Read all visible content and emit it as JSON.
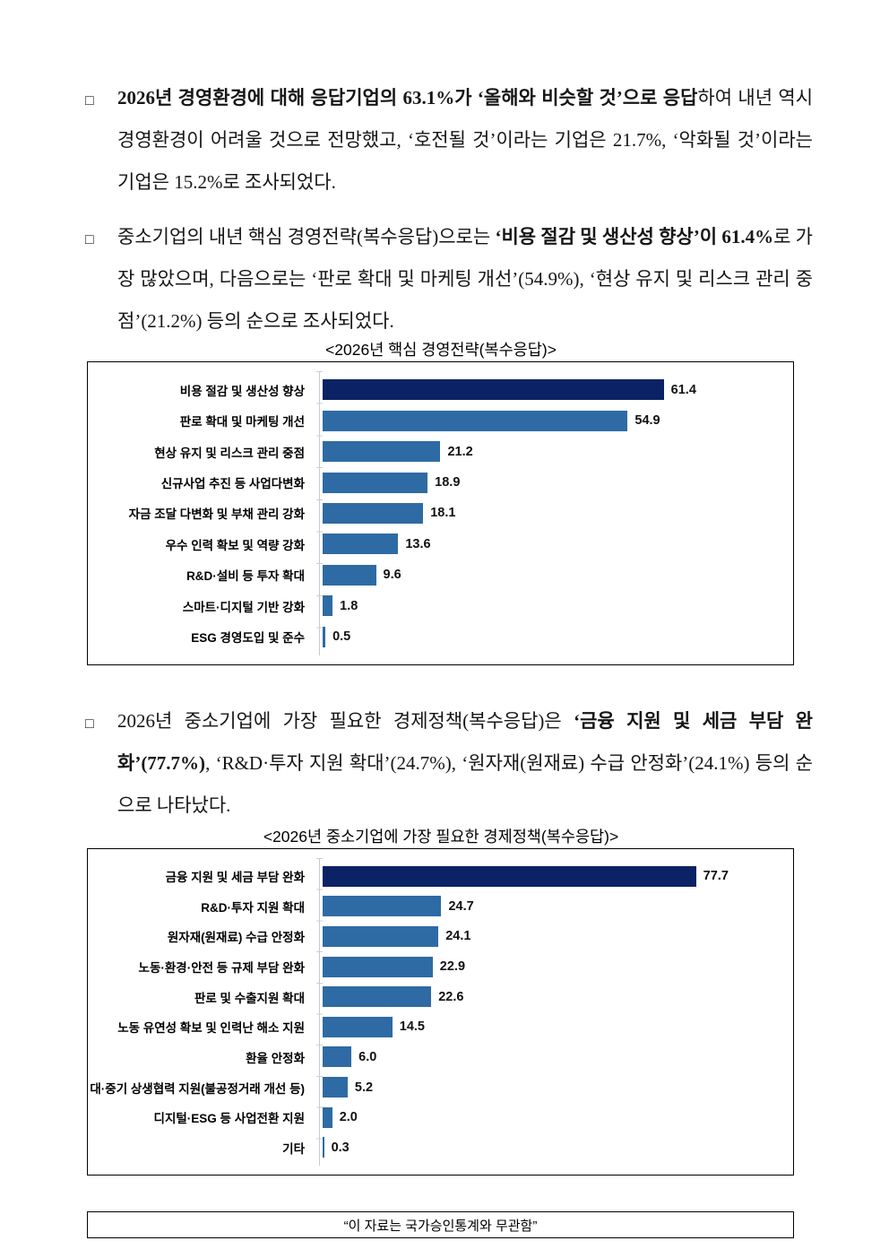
{
  "paragraphs": [
    {
      "bullet": "□",
      "segments": [
        {
          "text": "2026년 경영환경에 대해 응답기업의 63.1%가 ‘올해와 비슷할 것’으로 응답",
          "bold": true
        },
        {
          "text": "하여 내년 역시 경영환경이 어려울 것으로 전망했고, ‘호전될 것’이라는 기업은 21.7%, ‘악화될 것’이라는 기업은 15.2%로 조사되었다.",
          "bold": false
        }
      ]
    },
    {
      "bullet": "□",
      "segments": [
        {
          "text": "중소기업의 내년 핵심 경영전략(복수응답)으로는 ",
          "bold": false
        },
        {
          "text": "‘비용 절감 및 생산성 향상’이 61.4%",
          "bold": true
        },
        {
          "text": "로 가장 많았으며, 다음으로는 ‘판로 확대 및 마케팅 개선’(54.9%), ‘현상 유지 및 리스크 관리 중점’(21.2%) 등의 순으로 조사되었다.",
          "bold": false
        }
      ]
    },
    {
      "bullet": "□",
      "segments": [
        {
          "text": "2026년 중소기업에 가장 필요한 경제정책(복수응답)은 ",
          "bold": false
        },
        {
          "text": "‘금융 지원 및 세금 부담 완화’(77.7%)",
          "bold": true
        },
        {
          "text": ", ‘R&D·투자 지원 확대’(24.7%), ‘원자재(원재료) 수급 안정화’(24.1%) 등의 순으로 나타났다.",
          "bold": false
        }
      ]
    }
  ],
  "chart_data": [
    {
      "type": "bar",
      "orientation": "horizontal",
      "title": "<2026년 핵심 경영전략(복수응답)>",
      "categories": [
        "비용 절감 및 생산성 향상",
        "판로 확대 및 마케팅 개선",
        "현상 유지 및 리스크 관리 중점",
        "신규사업 추진 등 사업다변화",
        "자금 조달 다변화 및 부채 관리 강화",
        "우수 인력 확보 및 역량 강화",
        "R&D·설비 등 투자 확대",
        "스마트·디지털 기반 강화",
        "ESG 경영도입 및 준수"
      ],
      "values": [
        61.4,
        54.9,
        21.2,
        18.9,
        18.1,
        13.6,
        9.6,
        1.8,
        0.5
      ],
      "value_labels": [
        "61.4",
        "54.9",
        "21.2",
        "18.9",
        "18.1",
        "13.6",
        "9.6",
        "1.8",
        "0.5"
      ],
      "xlabel": "",
      "ylabel": "",
      "xlim": [
        0,
        65
      ],
      "grid": false,
      "legend": false,
      "highlight_index": 0,
      "highlight_color": "#0b2265",
      "bar_color": "#2e6ba4"
    },
    {
      "type": "bar",
      "orientation": "horizontal",
      "title": "<2026년 중소기업에 가장 필요한 경제정책(복수응답)>",
      "categories": [
        "금융 지원 및 세금 부담 완화",
        "R&D·투자 지원 확대",
        "원자재(원재료) 수급 안정화",
        "노동·환경·안전 등 규제 부담 완화",
        "판로 및 수출지원 확대",
        "노동 유연성 확보 및 인력난 해소 지원",
        "환율 안정화",
        "대·중기 상생협력 지원(불공정거래 개선 등)",
        "디지털·ESG 등 사업전환 지원",
        "기타"
      ],
      "values": [
        77.7,
        24.7,
        24.1,
        22.9,
        22.6,
        14.5,
        6.0,
        5.2,
        2.0,
        0.3
      ],
      "value_labels": [
        "77.7",
        "24.7",
        "24.1",
        "22.9",
        "22.6",
        "14.5",
        "6.0",
        "5.2",
        "2.0",
        "0.3"
      ],
      "xlabel": "",
      "ylabel": "",
      "xlim": [
        0,
        80
      ],
      "grid": false,
      "legend": false,
      "highlight_index": 0,
      "highlight_color": "#0b2265",
      "bar_color": "#2e6ba4"
    }
  ],
  "footer": {
    "text": "“이 자료는 국가승인통계와 무관함”"
  }
}
